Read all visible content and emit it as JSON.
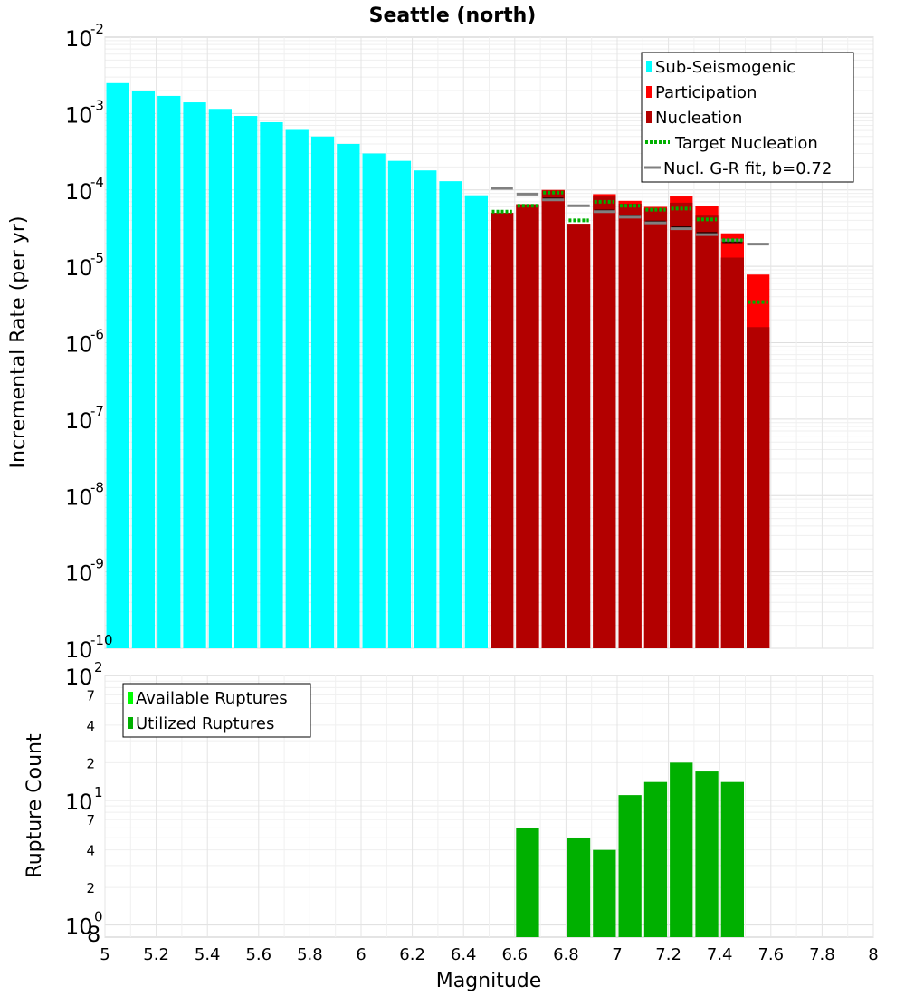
{
  "colors": {
    "sub_seismogenic": "#00ffff",
    "participation": "#ff0000",
    "nucleation": "#b30000",
    "target_nucleation": "#00b000",
    "gr_fit": "#808080",
    "nucl_marker": "#2a0000",
    "available_ruptures": "#00ff00",
    "utilized_ruptures": "#00b000"
  },
  "chart_data": [
    {
      "type": "bar",
      "title": "Seattle (north)",
      "xlabel": "",
      "ylabel": "Incremental Rate (per yr)",
      "xlim": [
        5,
        8
      ],
      "ylim": [
        1e-10,
        0.01
      ],
      "yscale": "log",
      "bin_width": 0.1,
      "y_tick_exponents": [
        -10,
        -9,
        -8,
        -7,
        -6,
        -5,
        -4,
        -3,
        -2
      ],
      "legend": {
        "position": "top-right",
        "entries": [
          "Sub-Seismogenic",
          "Participation",
          "Nucleation",
          "Target Nucleation",
          "Nucl. G-R fit, b=0.72"
        ]
      },
      "series": [
        {
          "name": "Sub-Seismogenic",
          "x": [
            5.05,
            5.15,
            5.25,
            5.35,
            5.45,
            5.55,
            5.65,
            5.75,
            5.85,
            5.95,
            6.05,
            6.15,
            6.25,
            6.35,
            6.45
          ],
          "values": [
            0.0025,
            0.002,
            0.0017,
            0.0014,
            0.00115,
            0.00093,
            0.00077,
            0.00061,
            0.0005,
            0.0004,
            0.0003,
            0.00024,
            0.00018,
            0.00013,
            8.5e-05
          ]
        },
        {
          "name": "Participation",
          "x": [
            6.55,
            6.65,
            6.75,
            6.85,
            6.95,
            7.05,
            7.15,
            7.25,
            7.35,
            7.45,
            7.55
          ],
          "values": [
            5e-05,
            6.5e-05,
            0.0001,
            3.6e-05,
            8.8e-05,
            7.2e-05,
            6e-05,
            8.2e-05,
            6.1e-05,
            2.7e-05,
            7.8e-06
          ]
        },
        {
          "name": "Nucleation",
          "x": [
            6.55,
            6.65,
            6.75,
            6.85,
            6.95,
            7.05,
            7.15,
            7.25,
            7.35,
            7.45,
            7.55
          ],
          "values": [
            5e-05,
            6.5e-05,
            9.8e-05,
            3.6e-05,
            8.2e-05,
            6.6e-05,
            5.7e-05,
            6.8e-05,
            4.6e-05,
            1.3e-05,
            1.6e-06
          ]
        },
        {
          "name": "Target Nucleation",
          "x": [
            6.55,
            6.65,
            6.75,
            6.85,
            6.95,
            7.05,
            7.15,
            7.25,
            7.35,
            7.45,
            7.55
          ],
          "values": [
            5.2e-05,
            6.2e-05,
            9.2e-05,
            4e-05,
            7e-05,
            6.2e-05,
            5.5e-05,
            5.7e-05,
            4.1e-05,
            2.2e-05,
            3.4e-06
          ]
        },
        {
          "name": "Nucl. G-R fit, b=0.72",
          "x": [
            6.55,
            6.65,
            6.75,
            6.85,
            6.95,
            7.05,
            7.15,
            7.25,
            7.35,
            7.45,
            7.55
          ],
          "values": [
            0.000105,
            8.8e-05,
            7.4e-05,
            6.2e-05,
            5.2e-05,
            4.4e-05,
            3.7e-05,
            3.1e-05,
            2.6e-05,
            2.2e-05,
            1.95e-05
          ]
        },
        {
          "name": "Nucleation tick marks",
          "x": [
            6.75,
            6.95,
            7.05,
            7.15,
            7.25,
            7.35,
            7.45
          ],
          "values": [
            7.6e-05,
            5.3e-05,
            4.5e-05,
            3.8e-05,
            3.2e-05,
            2.7e-05,
            2.1e-05
          ]
        }
      ]
    },
    {
      "type": "bar",
      "title": "",
      "xlabel": "Magnitude",
      "ylabel": "Rupture Count",
      "xlim": [
        5,
        8
      ],
      "x_ticks": [
        "5",
        "5.2",
        "5.4",
        "5.6",
        "5.8",
        "6",
        "6.2",
        "6.4",
        "6.6",
        "6.8",
        "7",
        "7.2",
        "7.4",
        "7.6",
        "7.8",
        "8"
      ],
      "ylim": [
        0.8,
        100
      ],
      "yscale": "log",
      "y_minor_tick_labels": [
        "2",
        "4",
        "7",
        "2",
        "4",
        "7"
      ],
      "y_bottom_label": "8",
      "y_mid_exponent_labels": [
        "0",
        "1",
        "2"
      ],
      "legend": {
        "position": "top-left",
        "entries": [
          "Available Ruptures",
          "Utilized Ruptures"
        ]
      },
      "series": [
        {
          "name": "Utilized Ruptures",
          "x": [
            6.65,
            6.85,
            6.95,
            7.05,
            7.15,
            7.25,
            7.35,
            7.45
          ],
          "values": [
            6,
            5,
            4,
            11,
            14,
            20,
            17,
            14
          ]
        }
      ]
    }
  ]
}
